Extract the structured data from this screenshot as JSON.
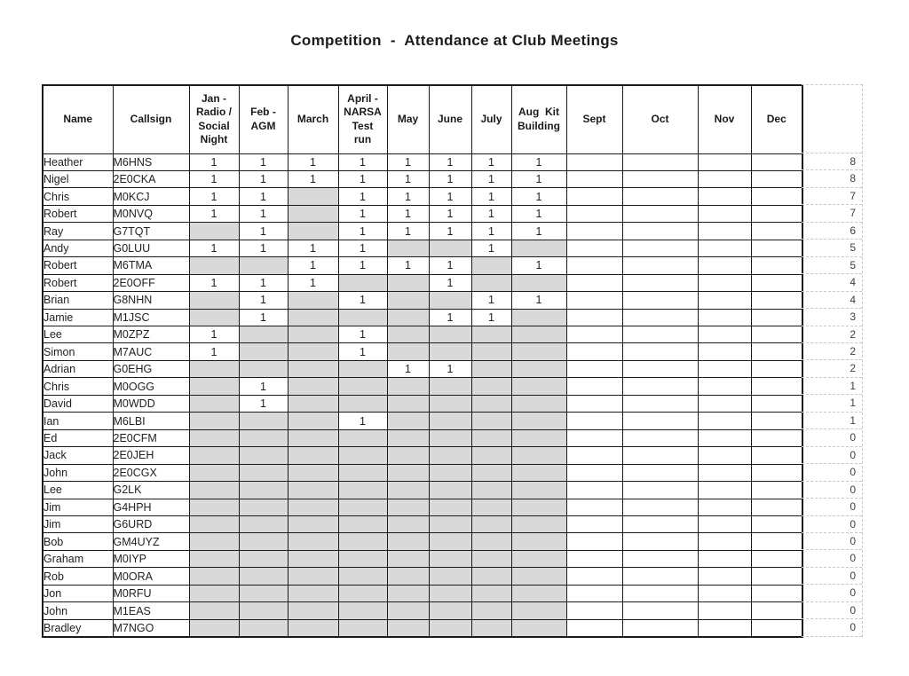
{
  "title": "Competition  -  Attendance at Club Meetings",
  "colors": {
    "shaded_cell": "#d9d9d9",
    "grid": "#1a1a1a",
    "dashed_guides": "#c9c9c9",
    "background": "#ffffff"
  },
  "table": {
    "attended_mark": "1",
    "headers": [
      "Name",
      "Callsign",
      "Jan -\nRadio /\nSocial\nNight",
      "Feb -\nAGM",
      "March",
      "April -\nNARSA\nTest\nrun",
      "May",
      "June",
      "July",
      "Aug  Kit\nBuilding",
      "Sept",
      "Oct",
      "Nov",
      "Dec"
    ],
    "rows": [
      {
        "name": "Heather",
        "callsign": "M6HNS",
        "months": [
          1,
          1,
          1,
          1,
          1,
          1,
          1,
          1
        ],
        "total": 8
      },
      {
        "name": "Nigel",
        "callsign": "2E0CKA",
        "months": [
          1,
          1,
          1,
          1,
          1,
          1,
          1,
          1
        ],
        "total": 8
      },
      {
        "name": "Chris",
        "callsign": "M0KCJ",
        "months": [
          1,
          1,
          0,
          1,
          1,
          1,
          1,
          1
        ],
        "total": 7
      },
      {
        "name": "Robert",
        "callsign": "M0NVQ",
        "months": [
          1,
          1,
          0,
          1,
          1,
          1,
          1,
          1
        ],
        "total": 7
      },
      {
        "name": "Ray",
        "callsign": "G7TQT",
        "months": [
          0,
          1,
          0,
          1,
          1,
          1,
          1,
          1
        ],
        "total": 6
      },
      {
        "name": "Andy",
        "callsign": "G0LUU",
        "months": [
          1,
          1,
          1,
          1,
          0,
          0,
          1,
          0
        ],
        "total": 5
      },
      {
        "name": "Robert",
        "callsign": "M6TMA",
        "months": [
          0,
          0,
          1,
          1,
          1,
          1,
          0,
          1
        ],
        "total": 5
      },
      {
        "name": "Robert",
        "callsign": "2E0OFF",
        "months": [
          1,
          1,
          1,
          0,
          0,
          1,
          0,
          0
        ],
        "total": 4
      },
      {
        "name": "Brian",
        "callsign": "G8NHN",
        "months": [
          0,
          1,
          0,
          1,
          0,
          0,
          1,
          1
        ],
        "total": 4
      },
      {
        "name": "Jamie",
        "callsign": "M1JSC",
        "months": [
          0,
          1,
          0,
          0,
          0,
          1,
          1,
          0
        ],
        "total": 3
      },
      {
        "name": "Lee",
        "callsign": "M0ZPZ",
        "months": [
          1,
          0,
          0,
          1,
          0,
          0,
          0,
          0
        ],
        "total": 2
      },
      {
        "name": "Simon",
        "callsign": "M7AUC",
        "months": [
          1,
          0,
          0,
          1,
          0,
          0,
          0,
          0
        ],
        "total": 2
      },
      {
        "name": "Adrian",
        "callsign": "G0EHG",
        "months": [
          0,
          0,
          0,
          0,
          1,
          1,
          0,
          0
        ],
        "total": 2
      },
      {
        "name": "Chris",
        "callsign": "M0OGG",
        "months": [
          0,
          1,
          0,
          0,
          0,
          0,
          0,
          0
        ],
        "total": 1
      },
      {
        "name": "David",
        "callsign": "M0WDD",
        "months": [
          0,
          1,
          0,
          0,
          0,
          0,
          0,
          0
        ],
        "total": 1
      },
      {
        "name": "Ian",
        "callsign": "M6LBI",
        "months": [
          0,
          0,
          0,
          1,
          0,
          0,
          0,
          0
        ],
        "total": 1
      },
      {
        "name": "Ed",
        "callsign": "2E0CFM",
        "months": [
          0,
          0,
          0,
          0,
          0,
          0,
          0,
          0
        ],
        "total": 0
      },
      {
        "name": "Jack",
        "callsign": "2E0JEH",
        "months": [
          0,
          0,
          0,
          0,
          0,
          0,
          0,
          0
        ],
        "total": 0
      },
      {
        "name": "John",
        "callsign": "2E0CGX",
        "months": [
          0,
          0,
          0,
          0,
          0,
          0,
          0,
          0
        ],
        "total": 0
      },
      {
        "name": "Lee",
        "callsign": "G2LK",
        "months": [
          0,
          0,
          0,
          0,
          0,
          0,
          0,
          0
        ],
        "total": 0
      },
      {
        "name": "Jim",
        "callsign": "G4HPH",
        "months": [
          0,
          0,
          0,
          0,
          0,
          0,
          0,
          0
        ],
        "total": 0
      },
      {
        "name": "Jim",
        "callsign": "G6URD",
        "months": [
          0,
          0,
          0,
          0,
          0,
          0,
          0,
          0
        ],
        "total": 0
      },
      {
        "name": "Bob",
        "callsign": "GM4UYZ",
        "months": [
          0,
          0,
          0,
          0,
          0,
          0,
          0,
          0
        ],
        "total": 0
      },
      {
        "name": "Graham",
        "callsign": "M0IYP",
        "months": [
          0,
          0,
          0,
          0,
          0,
          0,
          0,
          0
        ],
        "total": 0
      },
      {
        "name": "Rob",
        "callsign": "M0ORA",
        "months": [
          0,
          0,
          0,
          0,
          0,
          0,
          0,
          0
        ],
        "total": 0
      },
      {
        "name": "Jon",
        "callsign": "M0RFU",
        "months": [
          0,
          0,
          0,
          0,
          0,
          0,
          0,
          0
        ],
        "total": 0
      },
      {
        "name": "John",
        "callsign": "M1EAS",
        "months": [
          0,
          0,
          0,
          0,
          0,
          0,
          0,
          0
        ],
        "total": 0
      },
      {
        "name": "Bradley",
        "callsign": "M7NGO",
        "months": [
          0,
          0,
          0,
          0,
          0,
          0,
          0,
          0
        ],
        "total": 0
      }
    ]
  }
}
